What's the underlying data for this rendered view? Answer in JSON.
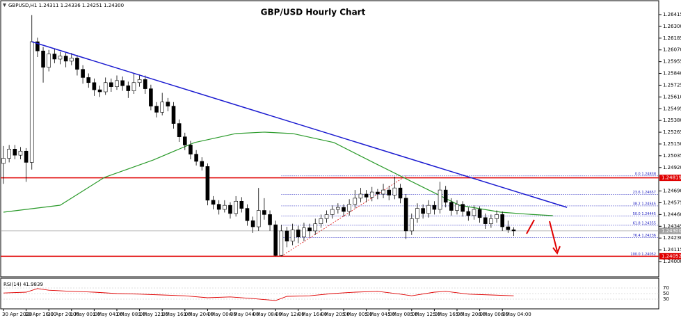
{
  "chart_data": {
    "type": "candlestick",
    "title": "GBP/USD Hourly Chart",
    "header": "GBPUSD,H1  1.24311  1.24336  1.24251  1.24300",
    "categories": [
      "30 Apr 2020",
      null,
      null,
      null,
      "30 Apr 16:00",
      null,
      null,
      null,
      "30 Apr 20:00",
      null,
      null,
      null,
      "1 May 00:00",
      null,
      null,
      null,
      "1 May 04:00",
      null,
      null,
      null,
      "1 May 08:00",
      null,
      null,
      null,
      "1 May 12:00",
      null,
      null,
      null,
      "1 May 16:00",
      null,
      null,
      null,
      "1 May 20:00",
      null,
      null,
      null,
      "4 May 00:00",
      null,
      null,
      null,
      "4 May 04:00",
      null,
      null,
      null,
      "4 May 08:00",
      null,
      null,
      null,
      "4 May 12:00",
      null,
      null,
      null,
      "4 May 16:00",
      null,
      null,
      null,
      "4 May 20:00",
      null,
      null,
      null,
      "5 May 00:00",
      null,
      null,
      null,
      "5 May 04:00",
      null,
      null,
      null,
      "5 May 08:00",
      null,
      null,
      null,
      "5 May 12:00",
      null,
      null,
      null,
      "5 May 16:00",
      null,
      null,
      null,
      "5 May 20:00",
      null,
      null,
      null,
      "6 May 00:00",
      null,
      null,
      null,
      "6 May 04:00",
      null,
      null
    ],
    "open": [
      1.2496,
      1.2501,
      1.251,
      1.2504,
      1.2508,
      1.2497,
      1.2615,
      1.2606,
      1.259,
      1.2603,
      1.2598,
      1.2601,
      1.2596,
      1.2599,
      1.2588,
      1.258,
      1.2575,
      1.2568,
      1.2566,
      1.2575,
      1.2571,
      1.2577,
      1.2572,
      1.2567,
      1.2575,
      1.2578,
      1.2569,
      1.2552,
      1.2546,
      1.2556,
      1.2552,
      1.2535,
      1.2522,
      1.2514,
      1.2505,
      1.2498,
      1.2493,
      1.246,
      1.2456,
      1.2451,
      1.2455,
      1.2447,
      1.2459,
      1.2452,
      1.244,
      1.2434,
      1.245,
      1.2446,
      1.2436,
      1.2406,
      1.243,
      1.242,
      1.2431,
      1.2424,
      1.2433,
      1.243,
      1.2437,
      1.2442,
      1.2446,
      1.2451,
      1.2453,
      1.2449,
      1.2456,
      1.2462,
      1.2466,
      1.2463,
      1.2468,
      1.2466,
      1.247,
      1.2465,
      1.2472,
      1.2462,
      1.243,
      1.2442,
      1.2452,
      1.2447,
      1.2455,
      1.2451,
      1.247,
      1.2458,
      1.245,
      1.2456,
      1.2449,
      1.2445,
      1.2451,
      1.2443,
      1.2437,
      1.2442,
      1.2446,
      1.2434,
      1.24311
    ],
    "high": [
      1.2513,
      1.2514,
      1.2514,
      1.2512,
      1.2511,
      1.2641,
      1.2619,
      1.261,
      1.2607,
      1.2608,
      1.2605,
      1.2604,
      1.2604,
      1.2602,
      1.2592,
      1.2584,
      1.2579,
      1.2572,
      1.258,
      1.2579,
      1.2582,
      1.2581,
      1.2576,
      1.2584,
      1.2583,
      1.2582,
      1.2573,
      1.2556,
      1.2565,
      1.256,
      1.2556,
      1.2539,
      1.2526,
      1.2518,
      1.2509,
      1.2502,
      1.2496,
      1.2464,
      1.246,
      1.246,
      1.2458,
      1.2464,
      1.2463,
      1.2456,
      1.2444,
      1.2472,
      1.2462,
      1.245,
      1.244,
      1.2436,
      1.2434,
      1.2437,
      1.2435,
      1.2438,
      1.2437,
      1.2442,
      1.2446,
      1.245,
      1.2455,
      1.2457,
      1.2456,
      1.2461,
      1.247,
      1.2472,
      1.247,
      1.2473,
      1.2471,
      1.2476,
      1.2474,
      1.2483,
      1.2476,
      1.2466,
      1.2447,
      1.2457,
      1.2456,
      1.246,
      1.2459,
      1.2478,
      1.2474,
      1.2462,
      1.246,
      1.2459,
      1.2453,
      1.2455,
      1.2454,
      1.2447,
      1.2446,
      1.245,
      1.2449,
      1.244,
      1.24336
    ],
    "low": [
      1.2476,
      1.2497,
      1.25,
      1.25,
      1.2478,
      1.249,
      1.26,
      1.2575,
      1.2586,
      1.2594,
      1.2593,
      1.259,
      1.2592,
      1.2582,
      1.2574,
      1.257,
      1.2562,
      1.2561,
      1.2563,
      1.2566,
      1.2568,
      1.2567,
      1.256,
      1.2564,
      1.2571,
      1.2564,
      1.2548,
      1.2541,
      1.2543,
      1.2547,
      1.253,
      1.2517,
      1.2509,
      1.25,
      1.2494,
      1.2489,
      1.2455,
      1.2451,
      1.2446,
      1.2448,
      1.2442,
      1.2444,
      1.2448,
      1.2435,
      1.2428,
      1.243,
      1.2441,
      1.243,
      1.24052,
      1.24052,
      1.2414,
      1.2416,
      1.2418,
      1.242,
      1.2424,
      1.2426,
      1.2433,
      1.2438,
      1.2442,
      1.2447,
      1.2444,
      1.2445,
      1.2452,
      1.2458,
      1.2458,
      1.2459,
      1.2461,
      1.2462,
      1.246,
      1.2461,
      1.2457,
      1.2422,
      1.2426,
      1.2438,
      1.2442,
      1.2443,
      1.2446,
      1.2447,
      1.2453,
      1.2445,
      1.2446,
      1.2444,
      1.244,
      1.2441,
      1.2438,
      1.2432,
      1.2433,
      1.2438,
      1.243,
      1.2428,
      1.24251
    ],
    "close": [
      1.2501,
      1.251,
      1.2504,
      1.2508,
      1.2497,
      1.2615,
      1.2606,
      1.259,
      1.2603,
      1.2598,
      1.2601,
      1.2596,
      1.2599,
      1.2588,
      1.258,
      1.2575,
      1.2568,
      1.2566,
      1.2575,
      1.2571,
      1.2577,
      1.2572,
      1.2567,
      1.2575,
      1.2578,
      1.2569,
      1.2552,
      1.2546,
      1.2556,
      1.2552,
      1.2535,
      1.2522,
      1.2514,
      1.2505,
      1.2498,
      1.2493,
      1.246,
      1.2456,
      1.2451,
      1.2455,
      1.2447,
      1.2459,
      1.2452,
      1.244,
      1.2434,
      1.245,
      1.2446,
      1.2436,
      1.2406,
      1.243,
      1.242,
      1.2431,
      1.2424,
      1.2433,
      1.243,
      1.2437,
      1.2442,
      1.2446,
      1.2451,
      1.2453,
      1.2449,
      1.2456,
      1.2462,
      1.2466,
      1.2463,
      1.2468,
      1.2466,
      1.247,
      1.2465,
      1.2472,
      1.2462,
      1.243,
      1.2442,
      1.2452,
      1.2447,
      1.2455,
      1.2451,
      1.247,
      1.2458,
      1.245,
      1.2456,
      1.2449,
      1.2445,
      1.2451,
      1.2443,
      1.2437,
      1.2442,
      1.2446,
      1.2434,
      1.24311,
      1.243
    ],
    "up_color": "#ffffff",
    "down_color": "#000000",
    "ylim": [
      1.23864,
      1.2649
    ],
    "yticks": [
      1.26415,
      {
        "value": 1.263,
        "label": "1.26300"
      },
      1.26185,
      {
        "value": 1.2607,
        "label": "1.26070"
      },
      1.25955,
      {
        "value": 1.2584,
        "label": "1.25840"
      },
      1.25725,
      {
        "value": 1.2561,
        "label": "1.25610"
      },
      1.25495,
      {
        "value": 1.2538,
        "label": "1.25380"
      },
      1.25265,
      {
        "value": 1.2515,
        "label": "1.25150"
      },
      1.25035,
      {
        "value": 1.2492,
        "label": "1.24920"
      },
      {
        "value": 1.2469,
        "label": "1.24690"
      },
      1.24575,
      {
        "value": 1.2446,
        "label": "1.24460"
      },
      1.24345,
      {
        "value": 1.2423,
        "label": "1.24230"
      },
      1.24115,
      {
        "value": 1.24,
        "label": "1.24000"
      }
    ],
    "moving_average": {
      "color": "#2a9a2a",
      "x": [
        0,
        10,
        17.8,
        26.4,
        33.7,
        41,
        46,
        51,
        58.3,
        65.6,
        73,
        80.4,
        87.7,
        92.6,
        96.9
      ],
      "values": [
        1.24483,
        1.24551,
        1.24823,
        1.24993,
        1.25164,
        1.25252,
        1.25266,
        1.25252,
        1.25164,
        1.24959,
        1.24755,
        1.24551,
        1.24483,
        1.24463,
        1.24449
      ]
    },
    "trendline": {
      "color": "#1a1ad0",
      "x": [
        5,
        99.4
      ],
      "values": [
        1.2615,
        1.2453
      ]
    },
    "price_lines": [
      {
        "price": 1.24819,
        "color": "#e00000"
      },
      {
        "price": {
          "value": 1.243,
          "label": "1.24300"
        },
        "color": "#a0a0a0"
      },
      {
        "price": 1.24052,
        "color": "#e00000"
      }
    ],
    "fibonacci": {
      "color": "#2020c0",
      "x": [
        49,
        71
      ],
      "levels": [
        {
          "value": 1.24838,
          "label": "0.0 1.24838"
        },
        {
          "value": 1.24657,
          "label": "23.6 1.24657"
        },
        {
          "value": 1.24545,
          "label": "38.2 1.24545"
        },
        {
          "value": 1.24445,
          "label": "50.0 1.24445"
        },
        {
          "value": 1.24355,
          "label": "61.8 1.24355"
        },
        {
          "value": 1.24236,
          "label": "76.4 1.24236"
        },
        {
          "value": 1.24052,
          "label": "100.0 1.24052"
        }
      ]
    },
    "rsi": {
      "label": "RSI(14) 41.9839",
      "color": "#e00000",
      "ylim": [
        0,
        100
      ],
      "yticks": [
        70,
        50,
        30
      ],
      "x": [
        0,
        4,
        6,
        8,
        12,
        16,
        20,
        24,
        28,
        32,
        36,
        40,
        44,
        48,
        50,
        54,
        58,
        62,
        66,
        70,
        72,
        76,
        78,
        82,
        86,
        90
      ],
      "values": [
        52,
        55,
        68,
        62,
        58,
        55,
        50,
        48,
        45,
        42,
        35,
        38,
        32,
        25,
        40,
        42,
        50,
        55,
        58,
        48,
        42,
        55,
        58,
        48,
        45,
        41.9839
      ]
    }
  }
}
